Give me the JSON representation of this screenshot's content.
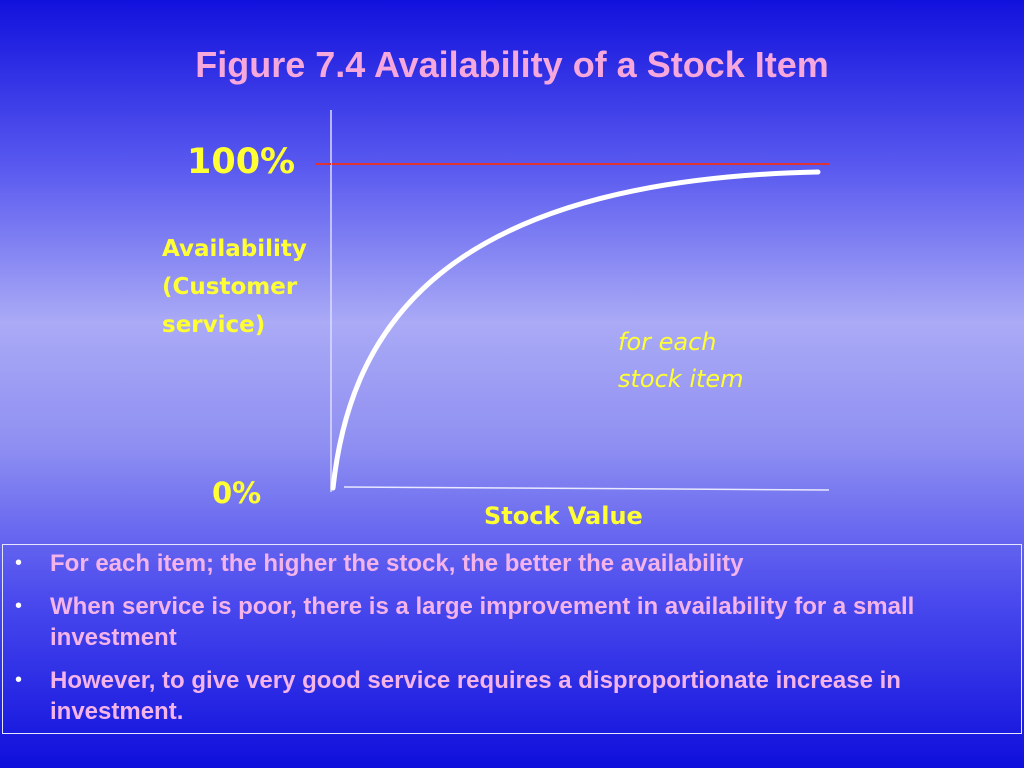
{
  "title": "Figure 7.4 Availability of a Stock Item",
  "diagram": {
    "y_top_label": "100%",
    "y_bottom_label": "0%",
    "y_axis_label_lines": [
      "Availability",
      "(Customer",
      "service)"
    ],
    "x_axis_label": "Stock Value",
    "curve_note_lines": [
      "for each",
      "stock item"
    ],
    "colors": {
      "label": "#ffff33",
      "curve": "#ffffff",
      "reference_line": "#dd3333",
      "title": "#f6a8dc",
      "bullet_text": "#f4b4ea"
    }
  },
  "bullets": [
    "For each item; the higher the stock, the better the availability",
    "When service is poor, there is a large improvement in availability for a small investment",
    "However, to give very good service requires a disproportionate increase in investment."
  ]
}
